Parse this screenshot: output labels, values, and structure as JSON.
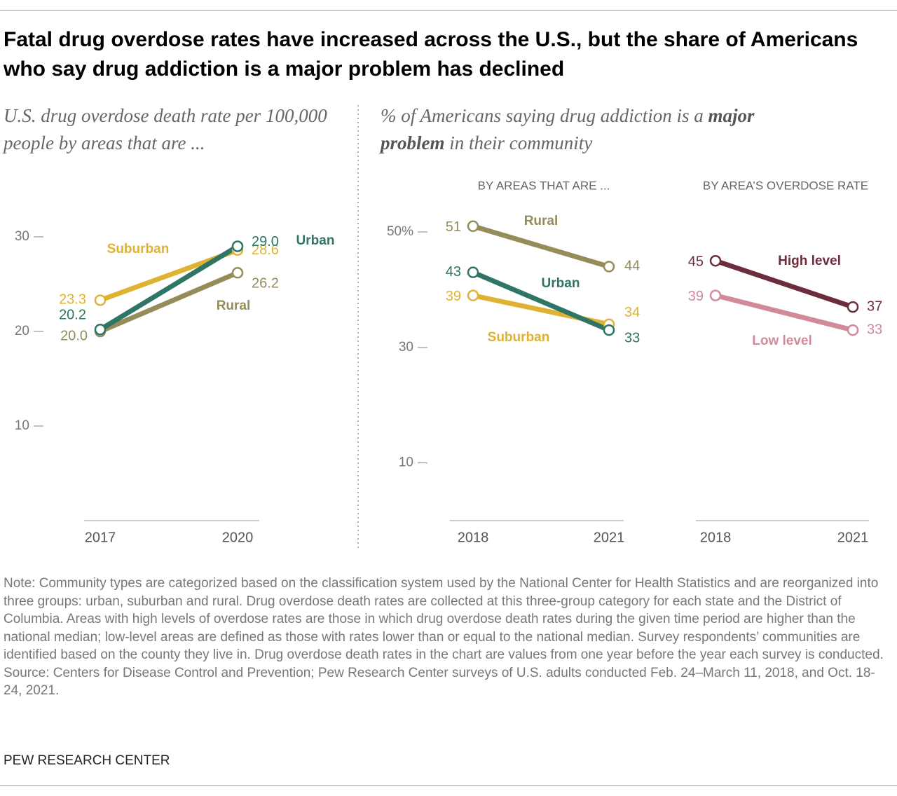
{
  "title": "Fatal drug overdose rates have increased across the U.S., but the share of Americans who say drug addiction is a major problem has declined",
  "right_heading": [
    "% of Americans saying drug addiction is a",
    "major problem",
    "in their community"
  ],
  "chart_data": [
    {
      "type": "line",
      "subtitle": "U.S. drug overdose death rate per 100,000 people by areas that are ...",
      "categories": [
        "2017",
        "2020"
      ],
      "ylim": [
        0,
        30
      ],
      "yticks": [
        10,
        20,
        30
      ],
      "series": [
        {
          "name": "Suburban",
          "color": "#e0b234",
          "values": [
            23.3,
            28.6
          ],
          "value_labels": [
            "23.3",
            "28.6"
          ]
        },
        {
          "name": "Rural",
          "color": "#958c5a",
          "values": [
            20.0,
            26.2
          ],
          "value_labels": [
            "20.0",
            "26.2"
          ]
        },
        {
          "name": "Urban",
          "color": "#2e7565",
          "values": [
            20.2,
            29.0
          ],
          "value_labels": [
            "20.2",
            "29.0"
          ]
        }
      ]
    },
    {
      "type": "line",
      "subtitle": "BY AREAS THAT ARE ...",
      "categories": [
        "2018",
        "2021"
      ],
      "ylim": [
        0,
        50
      ],
      "yticks": [
        10,
        30,
        {
          "value": 50,
          "label": "50%"
        }
      ],
      "series": [
        {
          "name": "Rural",
          "color": "#958c5a",
          "values": [
            51,
            44
          ]
        },
        {
          "name": "Suburban",
          "color": "#e0b234",
          "values": [
            39,
            34
          ]
        },
        {
          "name": "Urban",
          "color": "#2e7565",
          "values": [
            43,
            33
          ]
        }
      ]
    },
    {
      "type": "line",
      "subtitle": "BY AREA’S OVERDOSE RATE",
      "categories": [
        "2018",
        "2021"
      ],
      "ylim": [
        0,
        50
      ],
      "series": [
        {
          "name": "High level",
          "color": "#6b2d3c",
          "values": [
            45,
            37
          ]
        },
        {
          "name": "Low level",
          "color": "#d08a9a",
          "values": [
            39,
            33
          ]
        }
      ]
    }
  ],
  "note": "Note: Community types are categorized based on the classification system used by the National Center for Health Statistics and are reorganized into three groups: urban, suburban and rural. Drug overdose death rates are collected at this three-group category for each state and the District of Columbia. Areas with high levels of overdose rates are those in which drug overdose death rates during the given time period are higher than the national median; low-level areas are defined as those with rates lower than or equal to the national median. Survey respondents’ communities are identified based on the county they live in. Drug overdose death rates in the chart are values from one year before the year each survey is conducted.",
  "source": "Source: Centers for Disease Control and Prevention; Pew Research Center surveys of U.S. adults conducted Feb. 24–March 11, 2018, and Oct. 18-24, 2021.",
  "credit": "PEW RESEARCH CENTER"
}
